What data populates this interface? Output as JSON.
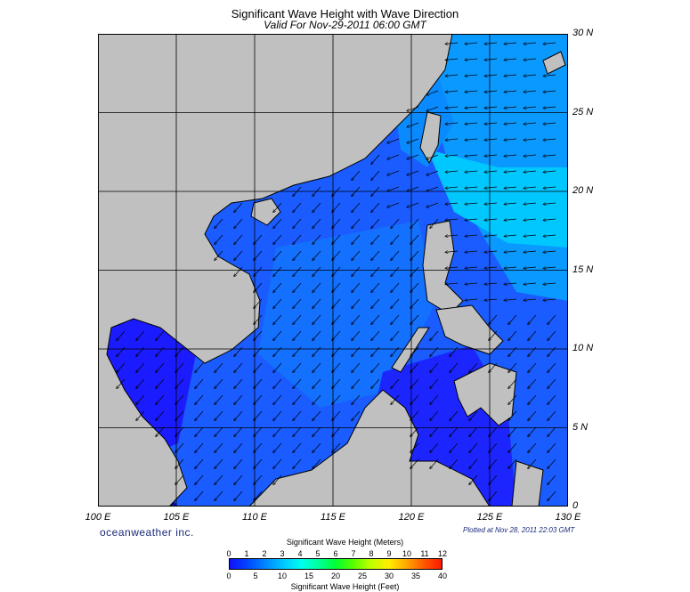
{
  "header": {
    "title": "Significant Wave Height with Wave Direction",
    "subtitle": "Valid For Nov-29-2011 06:00 GMT"
  },
  "map": {
    "lat_labels": [
      "30 N",
      "25 N",
      "20 N",
      "15 N",
      "10 N",
      "5 N",
      "0"
    ],
    "lat_values": [
      30,
      25,
      20,
      15,
      10,
      5,
      0
    ],
    "lon_labels": [
      "100 E",
      "105 E",
      "110 E",
      "115 E",
      "120 E",
      "125 E",
      "130 E"
    ],
    "lon_values": [
      100,
      105,
      110,
      115,
      120,
      125,
      130
    ],
    "extent": {
      "lon_min": 100,
      "lon_max": 130,
      "lat_min": 0,
      "lat_max": 30
    },
    "land_color": "#c0c0c0",
    "arrow_direction": "toward southwest"
  },
  "footer": {
    "brand": "oceanweather inc.",
    "plotted": "Plotted at Nov 28, 2011 22:03 GMT"
  },
  "legend": {
    "title_meters": "Significant Wave Height (Meters)",
    "title_feet": "Significant Wave Height (Feet)",
    "meter_ticks": [
      "0",
      "1",
      "2",
      "3",
      "4",
      "5",
      "6",
      "7",
      "8",
      "9",
      "10",
      "11",
      "12"
    ],
    "feet_ticks": [
      "0",
      "5",
      "10",
      "15",
      "20",
      "25",
      "30",
      "35",
      "40"
    ],
    "colors": {
      "low": "#1010ff",
      "mid": "#00ff33",
      "high": "#ff1800"
    }
  }
}
